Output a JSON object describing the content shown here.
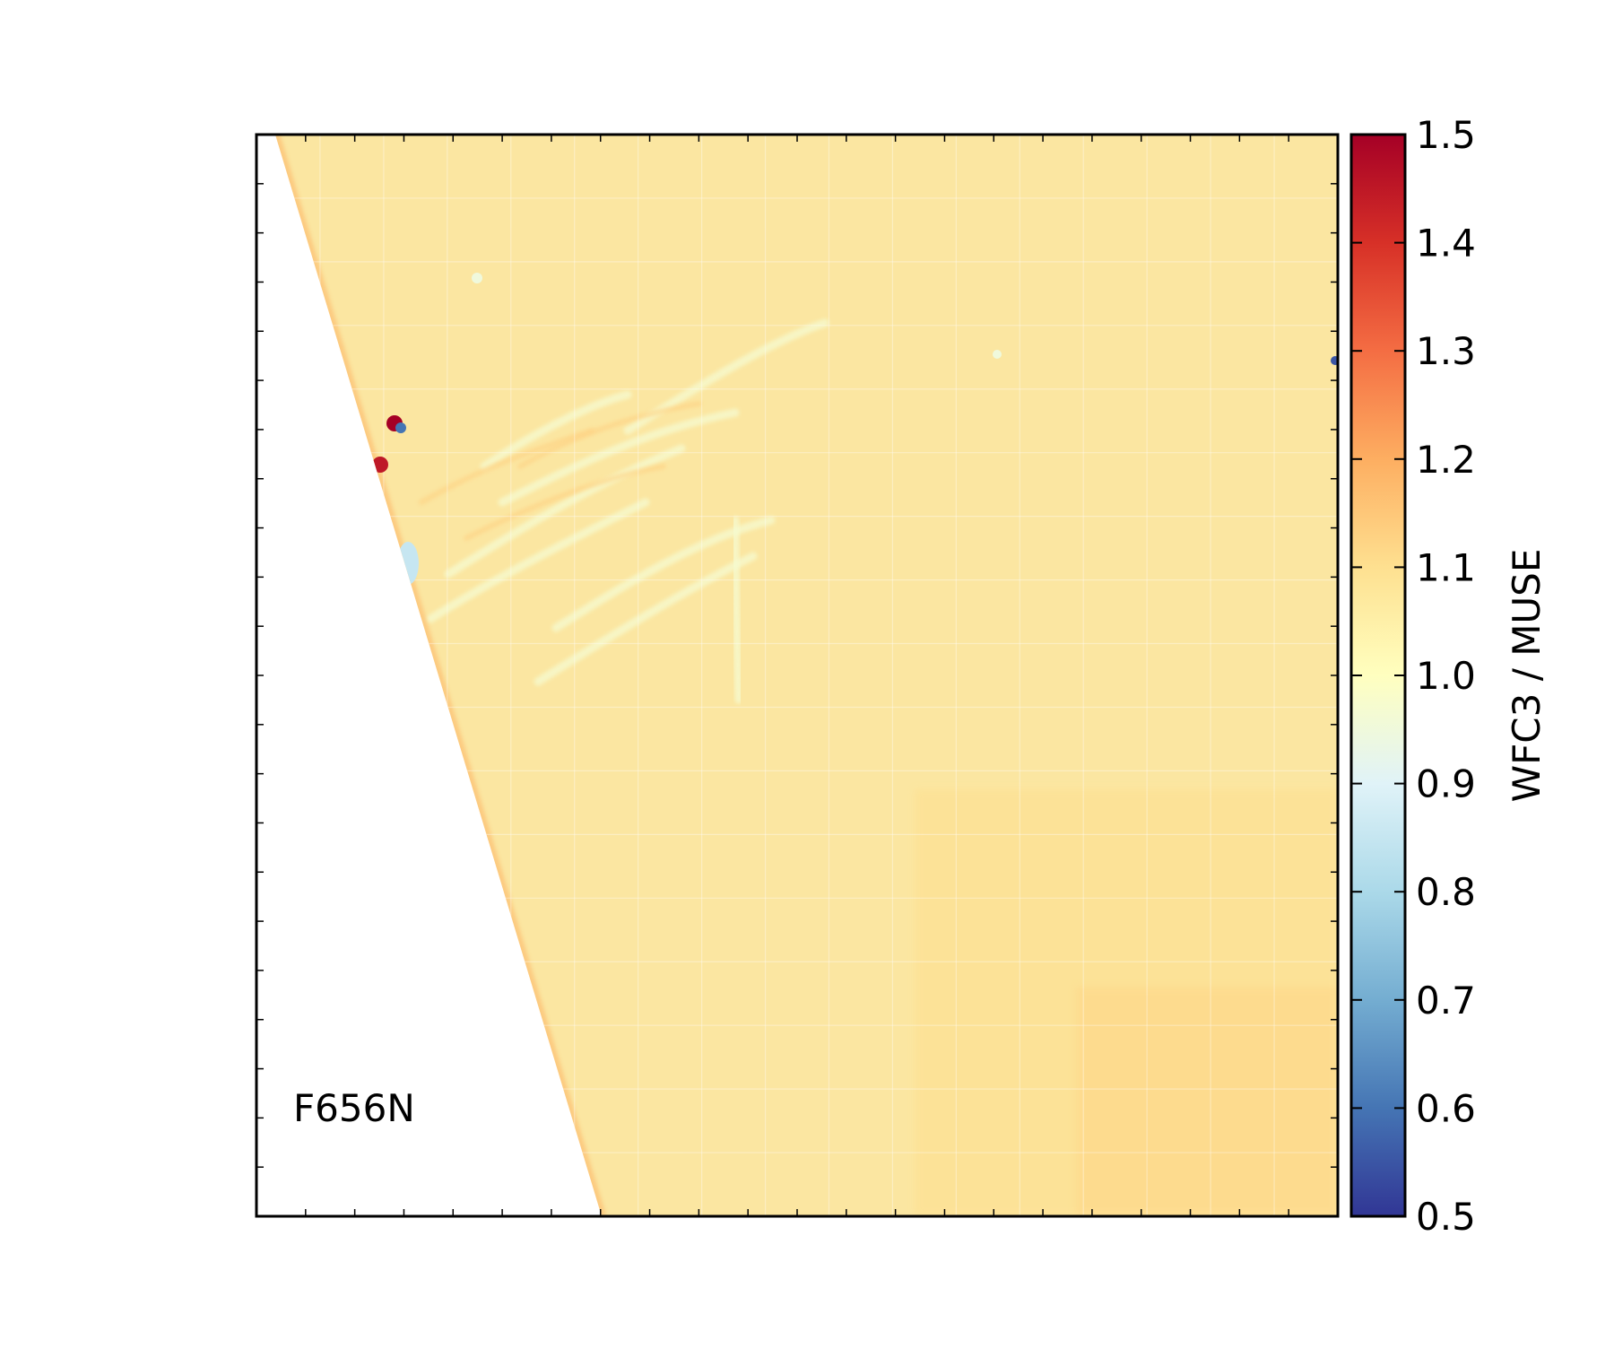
{
  "chart_data": {
    "type": "heatmap",
    "title": "",
    "xlabel": "",
    "ylabel": "",
    "panel_label": "F656N",
    "colorbar": {
      "label": "WFC3 / MUSE",
      "colormap": "RdYlBu_r",
      "range": [
        0.5,
        1.5
      ],
      "ticks": [
        0.5,
        0.6,
        0.7,
        0.8,
        0.9,
        1.0,
        1.1,
        1.2,
        1.3,
        1.4,
        1.5
      ],
      "tick_labels": [
        "0.5",
        "0.6",
        "0.7",
        "0.8",
        "0.9",
        "1.0",
        "1.1",
        "1.2",
        "1.3",
        "1.4",
        "1.5"
      ]
    },
    "map": {
      "typical_value": 1.07,
      "background_color": "#fbe6a1",
      "no_data_region": "left wedge",
      "outliers": [
        {
          "value": 1.5
        },
        {
          "value": 1.45
        },
        {
          "value": 0.6
        },
        {
          "value": 0.85
        },
        {
          "value": 0.95
        }
      ]
    },
    "grid": false,
    "axis_tick_labels": false
  },
  "colors": {
    "colormap_stops": [
      "#313695",
      "#4575b4",
      "#74add1",
      "#abd9e9",
      "#e0f3f8",
      "#ffffbf",
      "#fee090",
      "#fdae61",
      "#f46d43",
      "#d73027",
      "#a50026"
    ]
  }
}
